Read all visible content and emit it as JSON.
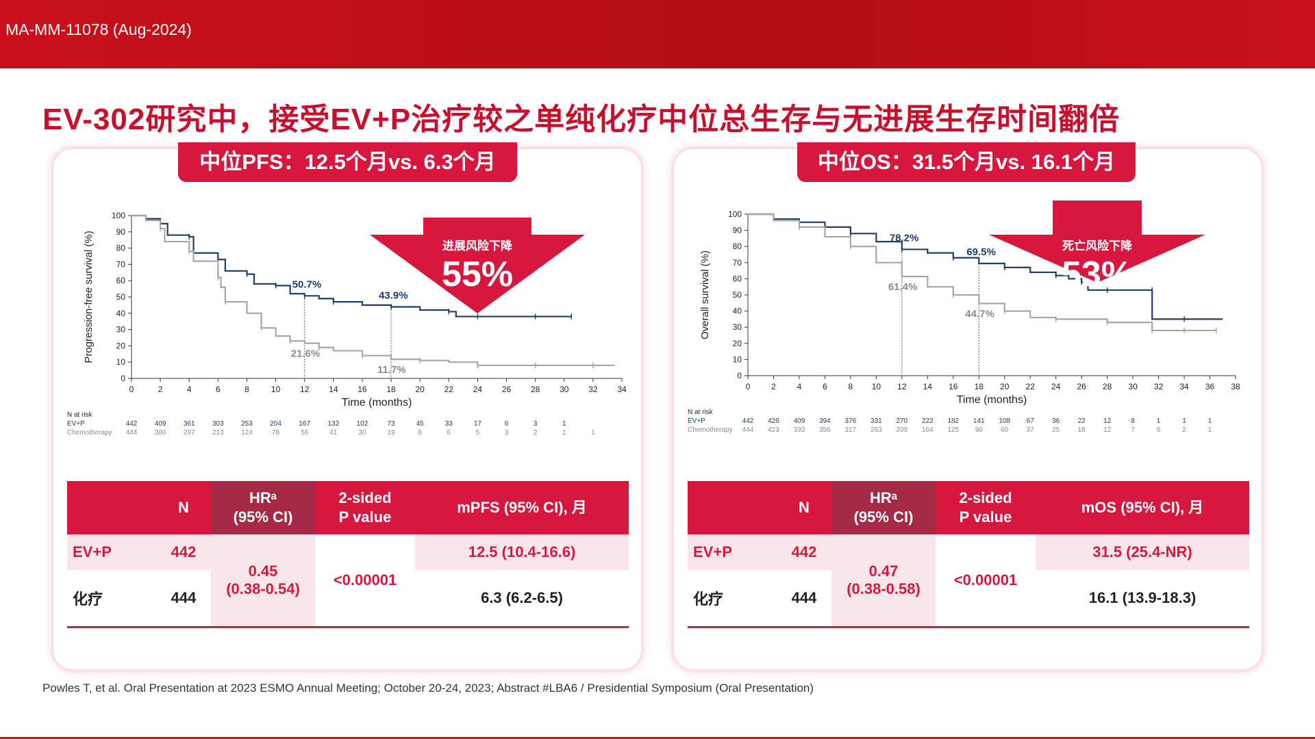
{
  "header": {
    "code": "MA-MM-11078 (Aug-2024)"
  },
  "title": "EV-302研究中，接受EV+P治疗较之单纯化疗中位总生存与无进展生存时间翻倍",
  "colors": {
    "brand_red": "#c8102e",
    "ev_p": "#1f3c6b",
    "chemo": "#a6a6a6",
    "table_header": "#d8173f",
    "hr_header": "#a42a45"
  },
  "footnote": "Powles T, et al. Oral Presentation at 2023 ESMO Annual Meeting; October 20-24, 2023; Abstract #LBA6 / Presidential Symposium (Oral Presentation)",
  "panels": [
    {
      "banner": "中位PFS：12.5个月vs. 6.3个月",
      "arrow": {
        "label": "进展风险下降",
        "value": "55%"
      },
      "risk": {
        "title": "N at risk",
        "ev_label": "EV+P",
        "chemo_label": "Chemotherapy",
        "ev": [
          "442",
          "409",
          "361",
          "303",
          "253",
          "204",
          "167",
          "132",
          "102",
          "73",
          "45",
          "33",
          "17",
          "6",
          "3",
          "1"
        ],
        "chemo": [
          "444",
          "380",
          "297",
          "213",
          "124",
          "78",
          "56",
          "41",
          "30",
          "19",
          "8",
          "6",
          "5",
          "3",
          "2",
          "1",
          "1"
        ]
      },
      "table": {
        "headers": {
          "n": "N",
          "hr": "HRᵃ",
          "hr_ci": "(95% CI)",
          "p1": "2-sided",
          "p2": "P value",
          "median": "mPFS (95% CI), 月"
        },
        "rows": [
          {
            "arm": "EV+P",
            "n": "442",
            "median": "12.5 (10.4-16.6)"
          },
          {
            "arm": "化疗",
            "n": "444",
            "median": "6.3 (6.2-6.5)"
          }
        ],
        "hr": "0.45",
        "hr_ci": "(0.38-0.54)",
        "p": "<0.00001"
      }
    },
    {
      "banner": "中位OS：31.5个月vs. 16.1个月",
      "arrow": {
        "label": "死亡风险下降",
        "value": "53%"
      },
      "risk": {
        "title": "N at risk",
        "ev_label": "EV+P",
        "chemo_label": "Chemotherapy",
        "ev": [
          "442",
          "426",
          "409",
          "394",
          "376",
          "331",
          "270",
          "222",
          "182",
          "141",
          "108",
          "67",
          "36",
          "22",
          "12",
          "8",
          "1",
          "1",
          "1"
        ],
        "chemo": [
          "444",
          "423",
          "393",
          "356",
          "317",
          "263",
          "209",
          "164",
          "125",
          "90",
          "60",
          "37",
          "25",
          "18",
          "12",
          "7",
          "6",
          "2",
          "1"
        ]
      },
      "table": {
        "headers": {
          "n": "N",
          "hr": "HRᵃ",
          "hr_ci": "(95% CI)",
          "p1": "2-sided",
          "p2": "P value",
          "median": "mOS (95% CI), 月"
        },
        "rows": [
          {
            "arm": "EV+P",
            "n": "442",
            "median": "31.5 (25.4-NR)"
          },
          {
            "arm": "化疗",
            "n": "444",
            "median": "16.1 (13.9-18.3)"
          }
        ],
        "hr": "0.47",
        "hr_ci": "(0.38-0.58)",
        "p": "<0.00001"
      }
    }
  ],
  "chart_data": [
    {
      "type": "line",
      "ylabel": "Progression-free survival (%)",
      "xlabel": "Time (months)",
      "xlim": [
        0,
        34
      ],
      "ylim": [
        0,
        100
      ],
      "xticks": [
        0,
        2,
        4,
        6,
        8,
        10,
        12,
        14,
        16,
        18,
        20,
        22,
        24,
        26,
        28,
        30,
        32,
        34
      ],
      "yticks": [
        0,
        10,
        20,
        30,
        40,
        50,
        60,
        70,
        80,
        90,
        100
      ],
      "series": [
        {
          "name": "EV+P",
          "color": "#1f3c6b",
          "x": [
            0,
            1,
            2,
            2.5,
            4,
            4.3,
            6,
            6.5,
            8,
            8.5,
            10,
            11,
            12,
            13,
            14,
            16,
            18,
            20,
            22,
            22.5,
            24,
            26,
            28,
            30,
            30.5
          ],
          "y": [
            100,
            98,
            95,
            88,
            87,
            77,
            73,
            66,
            64,
            58,
            57,
            52,
            50.7,
            49,
            47,
            45,
            43.9,
            42,
            41,
            38,
            38,
            38,
            38,
            38,
            38
          ]
        },
        {
          "name": "Chemotherapy",
          "color": "#a6a6a6",
          "x": [
            0,
            1,
            2,
            2.3,
            4,
            4.3,
            6,
            6.2,
            6.5,
            8,
            9,
            10,
            11,
            12,
            13,
            14,
            16,
            18,
            20,
            22,
            24,
            26,
            28,
            30,
            32,
            33.5
          ],
          "y": [
            100,
            97,
            92,
            84,
            78,
            72,
            62,
            56,
            47,
            40,
            31,
            26,
            23,
            21.6,
            19,
            17,
            14,
            11.7,
            11,
            10,
            8,
            8,
            8,
            8,
            8,
            8
          ]
        }
      ],
      "annotations": [
        {
          "x": 12,
          "y": 50.7,
          "text": "50.7%",
          "series": "EV+P"
        },
        {
          "x": 18,
          "y": 43.9,
          "text": "43.9%",
          "series": "EV+P"
        },
        {
          "x": 12,
          "y": 21.6,
          "text": "21.6%",
          "series": "Chemotherapy"
        },
        {
          "x": 18,
          "y": 11.7,
          "text": "11.7%",
          "series": "Chemotherapy"
        }
      ],
      "refs": [
        {
          "x": 12,
          "y": 50.7
        },
        {
          "x": 18,
          "y": 43.9
        }
      ]
    },
    {
      "type": "line",
      "ylabel": "Overall survival (%)",
      "xlabel": "Time (months)",
      "xlim": [
        0,
        38
      ],
      "ylim": [
        0,
        100
      ],
      "xticks": [
        0,
        2,
        4,
        6,
        8,
        10,
        12,
        14,
        16,
        18,
        20,
        22,
        24,
        26,
        28,
        30,
        32,
        34,
        36,
        38
      ],
      "yticks": [
        0,
        10,
        20,
        30,
        40,
        50,
        60,
        70,
        80,
        90,
        100
      ],
      "series": [
        {
          "name": "EV+P",
          "color": "#1f3c6b",
          "x": [
            0,
            2,
            4,
            6,
            8,
            10,
            12,
            14,
            16,
            18,
            20,
            22,
            24,
            25,
            26,
            26.5,
            28,
            30,
            31.5,
            31.5,
            34,
            37
          ],
          "y": [
            100,
            97,
            95,
            92,
            88,
            83,
            78.2,
            76,
            73,
            69.5,
            67,
            64,
            62,
            60,
            58,
            53,
            53,
            53,
            53,
            35,
            35,
            35
          ]
        },
        {
          "name": "Chemotherapy",
          "color": "#a6a6a6",
          "x": [
            0,
            2,
            4,
            6,
            8,
            10,
            12,
            14,
            16,
            18,
            20,
            22,
            24,
            26,
            28,
            30,
            31.5,
            32,
            34,
            36,
            36.5
          ],
          "y": [
            100,
            96,
            92,
            86,
            80,
            70,
            61.4,
            55,
            50,
            44.7,
            40,
            36,
            35,
            35,
            33,
            33,
            28,
            28,
            28,
            28,
            28
          ]
        }
      ],
      "annotations": [
        {
          "x": 12,
          "y": 78.2,
          "text": "78.2%",
          "series": "EV+P"
        },
        {
          "x": 18,
          "y": 69.5,
          "text": "69.5%",
          "series": "EV+P"
        },
        {
          "x": 12,
          "y": 61.4,
          "text": "61.4%",
          "series": "Chemotherapy"
        },
        {
          "x": 18,
          "y": 44.7,
          "text": "44.7%",
          "series": "Chemotherapy"
        }
      ],
      "refs": [
        {
          "x": 12,
          "y": 78.2
        },
        {
          "x": 18,
          "y": 69.5
        }
      ]
    }
  ]
}
